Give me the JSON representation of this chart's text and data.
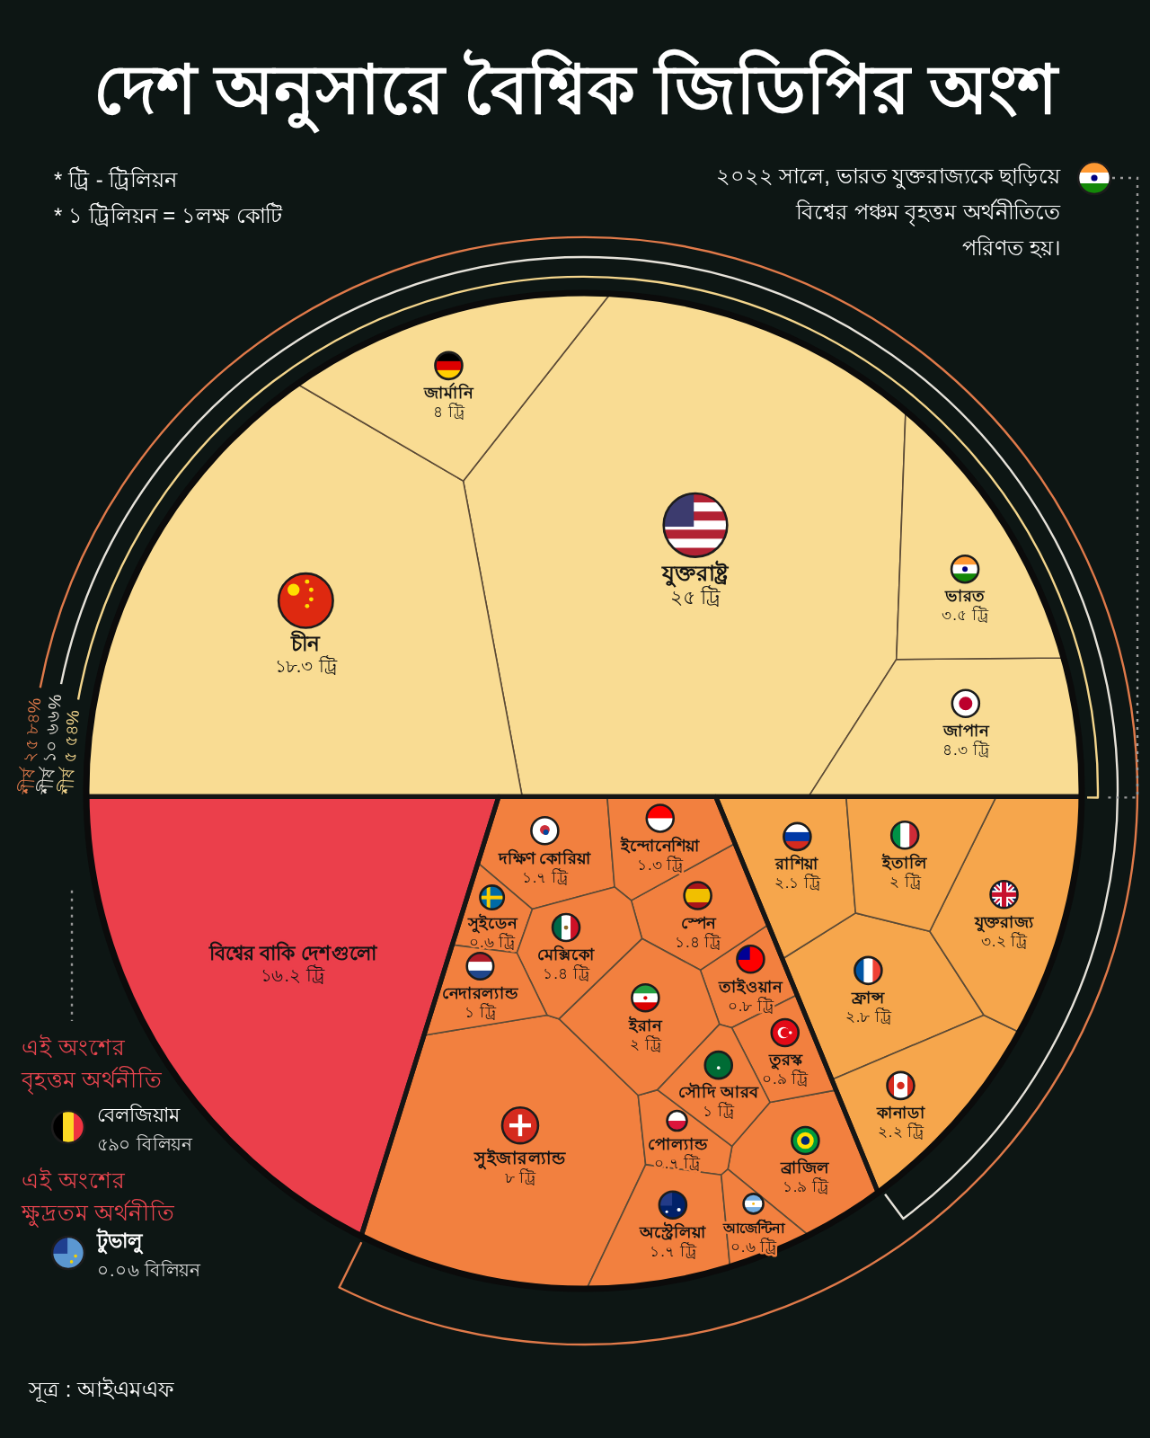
{
  "chart_data": {
    "type": "other",
    "title": "দেশ অনুসারে বৈশ্বিক জিডিপির অংশ",
    "categories": [
      "যুক্তরাষ্ট্র",
      "চীন",
      "জাপান",
      "জার্মানি",
      "ভারত",
      "ফ্রান্স",
      "কানাডা",
      "রাশিয়া",
      "যুক্তরাজ্য",
      "ইতালি",
      "তাইওয়ান",
      "ব্রাজিল",
      "সুইজারল্যান্ড",
      "দক্ষিণ কোরিয়া",
      "পোল্যান্ড",
      "স্পেন",
      "সুইডেন",
      "তুরস্ক",
      "ইন্দোনেশিয়া",
      "অস্ট্রেলিয়া",
      "ইরান",
      "সৌদি আরব",
      "মেক্সিকো",
      "আর্জেন্টিনা",
      "নেদারল্যান্ড",
      "বিশ্বের বাকি দেশগুলো"
    ],
    "series": [
      {
        "color": "#f9dc93",
        "values": [
          25,
          18.3,
          4.3,
          4,
          3.5,
          null,
          null,
          null,
          null,
          null,
          null,
          null,
          null,
          null,
          null,
          null,
          null,
          null,
          null,
          null,
          null,
          null,
          null,
          null,
          null,
          null
        ],
        "value_labels": [
          "২৫ ট্রি",
          "১৮.৩ ট্রি",
          "৪.৩ ট্রি",
          "৪ ট্রি",
          "৩.৫ ট্রি",
          null,
          null,
          null,
          null,
          null,
          null,
          null,
          null,
          null,
          null,
          null,
          null,
          null,
          null,
          null,
          null,
          null,
          null,
          null,
          null,
          null
        ]
      },
      {
        "color": "#f6a64c",
        "values": [
          null,
          null,
          null,
          null,
          null,
          2.8,
          2.2,
          2.1,
          3.2,
          2,
          null,
          null,
          null,
          null,
          null,
          null,
          null,
          null,
          null,
          null,
          null,
          null,
          null,
          null,
          null,
          null
        ],
        "value_labels": [
          null,
          null,
          null,
          null,
          null,
          "২.৮ ট্রি",
          "২.২ ট্রি",
          "২.১ ট্রি",
          "৩.২ ট্রি",
          "২ ট্রি",
          null,
          null,
          null,
          null,
          null,
          null,
          null,
          null,
          null,
          null,
          null,
          null,
          null,
          null,
          null,
          null
        ]
      },
      {
        "color": "#f2803f",
        "values": [
          null,
          null,
          null,
          null,
          null,
          null,
          null,
          null,
          null,
          null,
          0.8,
          1.9,
          8,
          1.7,
          0.7,
          1.4,
          0.6,
          0.9,
          1.3,
          1.7,
          2,
          1,
          1.4,
          0.6,
          1,
          null
        ],
        "value_labels": [
          null,
          null,
          null,
          null,
          null,
          null,
          null,
          null,
          null,
          null,
          "০.৮ ট্রি",
          "১.৯ ট্রি",
          "৮ ট্রি",
          "১.৭ ট্রি",
          "০.৭ ট্রি",
          "১.৪ ট্রি",
          "০.৬ ট্রি",
          "০.৯ ট্রি",
          "১.৩ ট্রি",
          "১.৭ ট্রি",
          "২ ট্রি",
          "১ ট্রি",
          "১.৪ ট্রি",
          "০.৬ ট্রি",
          "১ ট্রি",
          null
        ]
      },
      {
        "color": "#eb3f4b",
        "values": [
          null,
          null,
          null,
          null,
          null,
          null,
          null,
          null,
          null,
          null,
          null,
          null,
          null,
          null,
          null,
          null,
          null,
          null,
          null,
          null,
          null,
          null,
          null,
          null,
          null,
          16.2
        ],
        "value_labels": [
          null,
          null,
          null,
          null,
          null,
          null,
          null,
          null,
          null,
          null,
          null,
          null,
          null,
          null,
          null,
          null,
          null,
          null,
          null,
          null,
          null,
          null,
          null,
          null,
          null,
          "১৬.২ ট্রি"
        ]
      }
    ],
    "annotations": [
      "* ট্রি - ট্রিলিয়ন",
      "* ১ ট্রিলিয়ন = ১লক্ষ কোটি",
      "২০২২ সালে, ভারত যুক্তরাজ্যকে ছাড়িয়ে বিশ্বের পঞ্চম বৃহত্তম অর্থনীতিতে পরিণত হয়।",
      "শীর্ষ ৫ ৫৪%",
      "শীর্ষ ১০ ৬৬%",
      "শীর্ষ ২৫ ৮৪%",
      "এই অংশের বৃহত্তম অর্থনীতি",
      "বেলজিয়াম",
      "৫৯০ বিলিয়ন",
      "এই অংশের ক্ষুদ্রতম অর্থনীতি",
      "টুভালু",
      "০.০৬ বিলিয়ন",
      "সূত্র : আইএমএফ"
    ]
  }
}
